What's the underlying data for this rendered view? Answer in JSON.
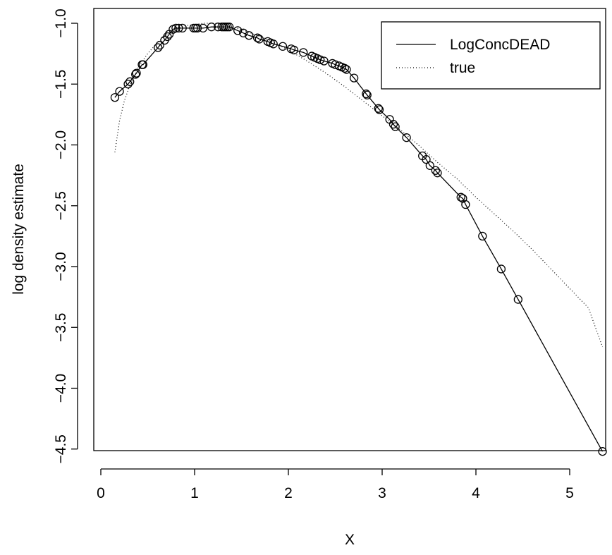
{
  "chart_data": {
    "type": "line",
    "title": "",
    "xlabel": "X",
    "ylabel": "log density estimate",
    "xlim": [
      0,
      5.4
    ],
    "ylim": [
      -4.6,
      -0.95
    ],
    "x_ticks": [
      0,
      1,
      2,
      3,
      4,
      5
    ],
    "x_tick_labels": [
      "0",
      "1",
      "2",
      "3",
      "4",
      "5"
    ],
    "y_ticks": [
      -1.0,
      -1.5,
      -2.0,
      -2.5,
      -3.0,
      -3.5,
      -4.0,
      -4.5
    ],
    "y_tick_labels": [
      "−1.0",
      "−1.5",
      "−2.0",
      "−2.5",
      "−3.0",
      "−3.5",
      "−4.0",
      "−4.5"
    ],
    "grid": false,
    "legend_position": "top-right",
    "series": [
      {
        "name": "LogConcDEAD",
        "style": "solid",
        "color": "#000000",
        "markers": "open-circle",
        "points": [
          [
            0.15,
            -1.61
          ],
          [
            0.2,
            -1.56
          ],
          [
            0.29,
            -1.5
          ],
          [
            0.31,
            -1.48
          ],
          [
            0.37,
            -1.42
          ],
          [
            0.38,
            -1.41
          ],
          [
            0.44,
            -1.34
          ],
          [
            0.45,
            -1.34
          ],
          [
            0.61,
            -1.2
          ],
          [
            0.63,
            -1.18
          ],
          [
            0.68,
            -1.14
          ],
          [
            0.71,
            -1.11
          ],
          [
            0.73,
            -1.09
          ],
          [
            0.77,
            -1.05
          ],
          [
            0.8,
            -1.04
          ],
          [
            0.83,
            -1.04
          ],
          [
            0.87,
            -1.04
          ],
          [
            0.99,
            -1.04
          ],
          [
            1.01,
            -1.04
          ],
          [
            1.03,
            -1.04
          ],
          [
            1.09,
            -1.04
          ],
          [
            1.18,
            -1.03
          ],
          [
            1.25,
            -1.03
          ],
          [
            1.29,
            -1.03
          ],
          [
            1.31,
            -1.03
          ],
          [
            1.33,
            -1.03
          ],
          [
            1.35,
            -1.03
          ],
          [
            1.37,
            -1.03
          ],
          [
            1.46,
            -1.06
          ],
          [
            1.52,
            -1.08
          ],
          [
            1.58,
            -1.1
          ],
          [
            1.67,
            -1.12
          ],
          [
            1.69,
            -1.13
          ],
          [
            1.78,
            -1.15
          ],
          [
            1.81,
            -1.16
          ],
          [
            1.84,
            -1.17
          ],
          [
            1.94,
            -1.19
          ],
          [
            2.03,
            -1.21
          ],
          [
            2.06,
            -1.22
          ],
          [
            2.16,
            -1.24
          ],
          [
            2.25,
            -1.27
          ],
          [
            2.28,
            -1.28
          ],
          [
            2.31,
            -1.29
          ],
          [
            2.34,
            -1.3
          ],
          [
            2.38,
            -1.31
          ],
          [
            2.47,
            -1.33
          ],
          [
            2.5,
            -1.34
          ],
          [
            2.54,
            -1.35
          ],
          [
            2.57,
            -1.36
          ],
          [
            2.6,
            -1.37
          ],
          [
            2.62,
            -1.38
          ],
          [
            2.7,
            -1.45
          ],
          [
            2.83,
            -1.58
          ],
          [
            2.84,
            -1.59
          ],
          [
            2.96,
            -1.7
          ],
          [
            2.97,
            -1.71
          ],
          [
            3.08,
            -1.79
          ],
          [
            3.12,
            -1.83
          ],
          [
            3.14,
            -1.85
          ],
          [
            3.26,
            -1.94
          ],
          [
            3.43,
            -2.09
          ],
          [
            3.47,
            -2.12
          ],
          [
            3.51,
            -2.17
          ],
          [
            3.57,
            -2.21
          ],
          [
            3.59,
            -2.23
          ],
          [
            3.84,
            -2.43
          ],
          [
            3.86,
            -2.44
          ],
          [
            3.89,
            -2.49
          ],
          [
            4.07,
            -2.75
          ],
          [
            4.27,
            -3.02
          ],
          [
            4.45,
            -3.27
          ],
          [
            5.35,
            -4.52
          ]
        ]
      },
      {
        "name": "true",
        "style": "dotted",
        "color": "#000000",
        "points": [
          [
            0.15,
            -2.06
          ],
          [
            0.2,
            -1.8
          ],
          [
            0.25,
            -1.64
          ],
          [
            0.3,
            -1.53
          ],
          [
            0.4,
            -1.36
          ],
          [
            0.5,
            -1.25
          ],
          [
            0.6,
            -1.16
          ],
          [
            0.7,
            -1.09
          ],
          [
            0.8,
            -1.05
          ],
          [
            0.9,
            -1.02
          ],
          [
            1.0,
            -1.01
          ],
          [
            1.1,
            -1.0
          ],
          [
            1.2,
            -1.0
          ],
          [
            1.3,
            -1.01
          ],
          [
            1.4,
            -1.03
          ],
          [
            1.5,
            -1.05
          ],
          [
            1.6,
            -1.08
          ],
          [
            1.8,
            -1.14
          ],
          [
            2.0,
            -1.22
          ],
          [
            2.2,
            -1.31
          ],
          [
            2.4,
            -1.41
          ],
          [
            2.6,
            -1.52
          ],
          [
            2.8,
            -1.64
          ],
          [
            3.0,
            -1.76
          ],
          [
            3.2,
            -1.88
          ],
          [
            3.4,
            -2.01
          ],
          [
            3.6,
            -2.15
          ],
          [
            3.8,
            -2.28
          ],
          [
            4.0,
            -2.43
          ],
          [
            4.2,
            -2.57
          ],
          [
            4.4,
            -2.71
          ],
          [
            4.6,
            -2.86
          ],
          [
            4.8,
            -3.02
          ],
          [
            5.0,
            -3.18
          ],
          [
            5.2,
            -3.34
          ],
          [
            5.35,
            -3.66
          ]
        ]
      }
    ]
  }
}
